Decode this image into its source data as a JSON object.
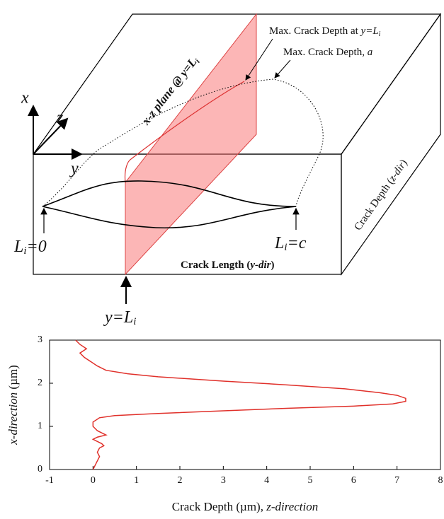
{
  "diagram": {
    "axis_x": "x",
    "axis_z": "z",
    "axis_y": "y",
    "plane_label": [
      "x-z plane @ y=L",
      "i"
    ],
    "max_depth_at": [
      "Max. Crack Depth at ",
      "y=L",
      "i"
    ],
    "max_depth": [
      "Max. Crack Depth, ",
      "a"
    ],
    "crack_depth_dir": [
      "Crack Depth (",
      "z-dir",
      ")"
    ],
    "crack_length_dir": [
      "Crack Length (",
      "y-dir",
      ")"
    ],
    "start_label": [
      "L",
      "i",
      "=0"
    ],
    "end_label": [
      "L",
      "i",
      "=c"
    ],
    "position_label": [
      "y=L",
      "i"
    ]
  },
  "chart_data": {
    "type": "line",
    "xlabel": [
      "Crack Depth (µm), ",
      "z-direction"
    ],
    "ylabel": [
      "x-direction",
      " (µm)"
    ],
    "xlim": [
      -1,
      8
    ],
    "xticks": [
      -1,
      0,
      1,
      2,
      3,
      4,
      5,
      6,
      7,
      8
    ],
    "ylim": [
      0,
      3
    ],
    "yticks": [
      0,
      1,
      2,
      3
    ],
    "x": [
      -0.4,
      -0.3,
      -0.15,
      -0.3,
      -0.2,
      0.1,
      0.3,
      0.8,
      1.5,
      3,
      4.5,
      5.8,
      6.6,
      7.0,
      7.2,
      7.2,
      6.9,
      6.0,
      4.5,
      3.0,
      1.5,
      0.5,
      0.15,
      0.0,
      0.0,
      0.1,
      0.2,
      0.3,
      0.1,
      0.0,
      0.2,
      0.25,
      0.15,
      0.1,
      0.15,
      0.1,
      0.05,
      0.0
    ],
    "series": [
      {
        "color": "#e0302a",
        "values": [
          3.0,
          2.9,
          2.8,
          2.7,
          2.6,
          2.4,
          2.3,
          2.22,
          2.15,
          2.05,
          1.96,
          1.87,
          1.78,
          1.72,
          1.65,
          1.58,
          1.52,
          1.47,
          1.42,
          1.36,
          1.3,
          1.25,
          1.2,
          1.1,
          1.0,
          0.9,
          0.85,
          0.8,
          0.75,
          0.7,
          0.6,
          0.55,
          0.5,
          0.4,
          0.3,
          0.2,
          0.1,
          0.0
        ]
      }
    ]
  }
}
